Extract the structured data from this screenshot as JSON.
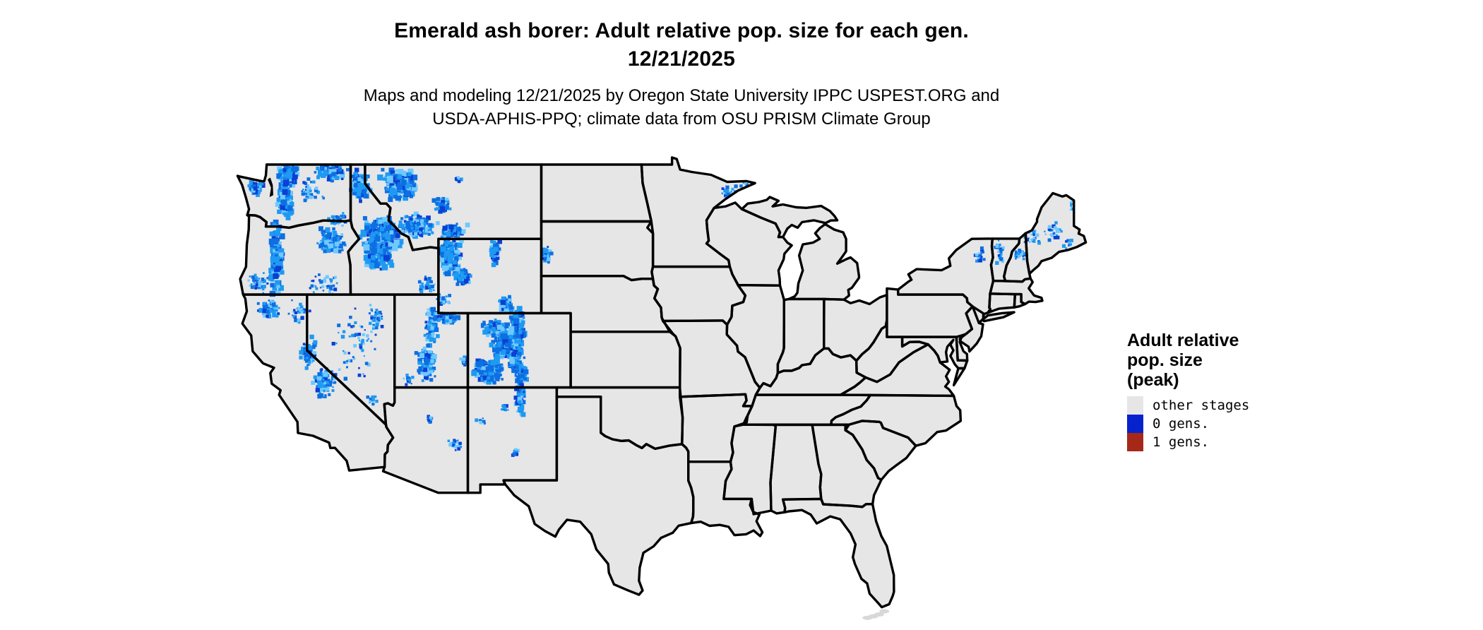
{
  "header": {
    "title_line1": "Emerald ash borer: Adult relative pop. size for each gen.",
    "title_line2": "12/21/2025",
    "subtitle_line1": "Maps and modeling 12/21/2025 by Oregon State University IPPC USPEST.ORG and",
    "subtitle_line2": "USDA-APHIS-PPQ; climate data from OSU PRISM Climate Group"
  },
  "legend": {
    "title_lines": [
      "Adult relative",
      "pop. size",
      "(peak)"
    ],
    "items": [
      {
        "label": "other stages",
        "color": "#e6e6e6"
      },
      {
        "label": "0 gens.",
        "color": "#0522cd"
      },
      {
        "label": "1 gens.",
        "color": "#a52819"
      }
    ]
  },
  "map": {
    "region": "Contiguous United States",
    "background": "#ffffff",
    "state_fill": "#e6e6e6",
    "state_border_color": "#000000",
    "water_color": "#ffffff",
    "keys_color": "#d8d8d8",
    "raster_palette": [
      "#6fc9ff",
      "#1e9af2",
      "#0d6fe2",
      "#0a3fd4"
    ],
    "data_summary": {
      "type": "raster_choropleth",
      "blue_category": "0 gens.",
      "blue_regions": "High-elevation western mountains: Cascades (WA/OR), Olympics, Selkirks, Idaho and Montana Rockies, Yellowstone/Wind River/Bighorn ranges (WY), Black Hills (SD), Wasatch and Uinta (UT), Colorado Rockies and San Juans, Sangre de Cristo (NM), Sierra Nevada (CA), scattered Great Basin ranges (NV), Arizona peaks, northeastern Minnesota, Adirondacks, Green and White Mountains, interior Maine",
      "red_regions": "none visible",
      "remainder": "other stages (light gray)"
    }
  }
}
